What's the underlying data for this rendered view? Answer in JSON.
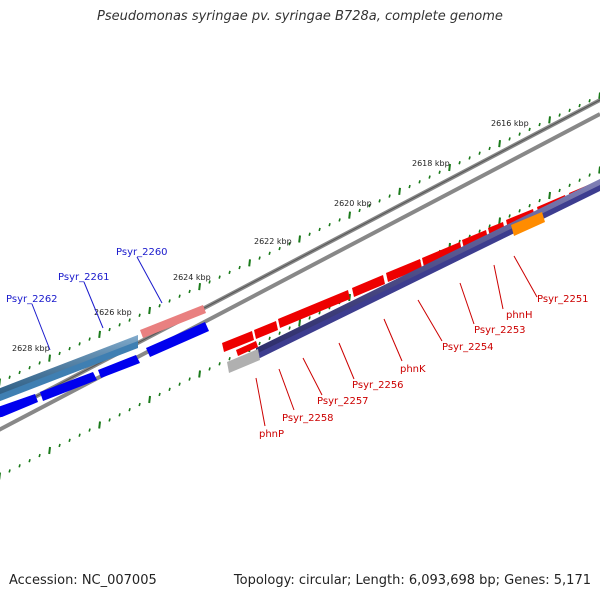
{
  "title": "Pseudomonas syringae pv. syringae B728a, complete genome",
  "footer": {
    "accession": "Accession: NC_007005",
    "stats": "Topology: circular; Length: 6,093,698 bp; Genes: 5,171"
  },
  "scale_labels": [
    "2616 kbp",
    "2618 kbp",
    "2620 kbp",
    "2622 kbp",
    "2624 kbp",
    "2626 kbp",
    "2628 kbp"
  ],
  "genes_forward": [
    "Psyr_2260",
    "Psyr_2261",
    "Psyr_2262"
  ],
  "genes_reverse": [
    "Psyr_2251",
    "phnH",
    "Psyr_2253",
    "Psyr_2254",
    "phnK",
    "Psyr_2256",
    "Psyr_2257",
    "Psyr_2258",
    "phnP"
  ],
  "colors": {
    "forward": "#0000ee",
    "reverse": "#ee0000",
    "operon": "#3d3d8f",
    "highlight": "#ff8c00",
    "tick": "#1a7a1a",
    "backbone": "#777777"
  }
}
